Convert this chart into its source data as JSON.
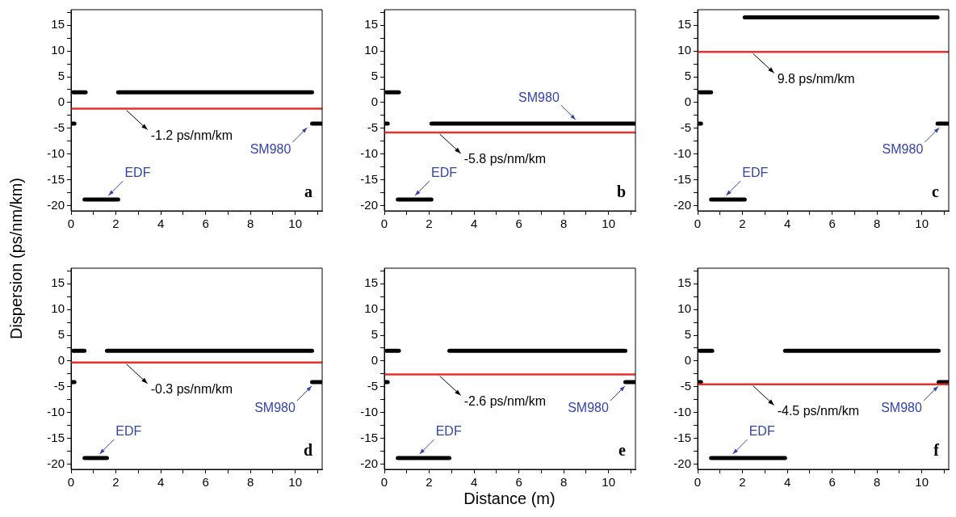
{
  "chart_data": [
    {
      "type": "line",
      "title": "a",
      "ylabel": "Dispersion (ps/nm/km)",
      "xlim": [
        0,
        11.2
      ],
      "ylim": [
        -21,
        18
      ],
      "xticks": [
        0,
        {
          "value": 1,
          "label": null
        },
        2,
        {
          "value": 3,
          "label": null
        },
        4,
        {
          "value": 5,
          "label": null
        },
        6,
        {
          "value": 7,
          "label": null
        },
        8,
        {
          "value": 9,
          "label": null
        },
        10,
        {
          "value": 11,
          "label": null
        }
      ],
      "yticks": [
        -20,
        {
          "value": -17.5,
          "label": null
        },
        -15,
        {
          "value": -12.5,
          "label": null
        },
        -10,
        {
          "value": -7.5,
          "label": null
        },
        -5,
        {
          "value": -2.5,
          "label": null
        },
        0,
        {
          "value": 2.5,
          "label": null
        },
        5,
        {
          "value": 7.5,
          "label": null
        },
        10,
        {
          "value": 12.5,
          "label": null
        },
        15,
        {
          "value": 17.5,
          "label": null
        }
      ],
      "series": [
        {
          "color": "#000000",
          "x": [
            0,
            0.15
          ],
          "values": [
            -4.1,
            -4.1
          ]
        },
        {
          "color": "#000000",
          "x": [
            0.1,
            0.65
          ],
          "values": [
            2,
            2
          ]
        },
        {
          "color": "#000000",
          "x": [
            0.6,
            2.1
          ],
          "values": [
            -18.8,
            -18.8
          ]
        },
        {
          "color": "#000000",
          "x": [
            2.1,
            10.75
          ],
          "values": [
            2,
            2
          ]
        },
        {
          "color": "#000000",
          "x": [
            10.75,
            11.2
          ],
          "values": [
            -4.1,
            -4.1
          ]
        }
      ],
      "ref_lines": [
        {
          "axis": "y",
          "value": -1.2,
          "label": "-1.2 ps/nm/km",
          "color": "#e8312a"
        }
      ],
      "annotations": [
        {
          "text": "SM980",
          "x": 10.6,
          "y": -4.1
        },
        {
          "text": "EDF",
          "x": 1.6,
          "y": -18.8
        }
      ]
    },
    {
      "type": "line",
      "title": "b",
      "xlim": [
        0,
        11.2
      ],
      "ylim": [
        -21,
        18
      ],
      "xticks": [
        0,
        {
          "value": 1,
          "label": null
        },
        2,
        {
          "value": 3,
          "label": null
        },
        4,
        {
          "value": 5,
          "label": null
        },
        6,
        {
          "value": 7,
          "label": null
        },
        8,
        {
          "value": 9,
          "label": null
        },
        10,
        {
          "value": 11,
          "label": null
        }
      ],
      "yticks": [
        -20,
        {
          "value": -17.5,
          "label": null
        },
        -15,
        {
          "value": -12.5,
          "label": null
        },
        -10,
        {
          "value": -7.5,
          "label": null
        },
        -5,
        {
          "value": -2.5,
          "label": null
        },
        0,
        {
          "value": 2.5,
          "label": null
        },
        5,
        {
          "value": 7.5,
          "label": null
        },
        10,
        {
          "value": 12.5,
          "label": null
        },
        15,
        {
          "value": 17.5,
          "label": null
        }
      ],
      "series": [
        {
          "color": "#000000",
          "x": [
            0,
            0.15
          ],
          "values": [
            -4.1,
            -4.1
          ]
        },
        {
          "color": "#000000",
          "x": [
            0.1,
            0.65
          ],
          "values": [
            2,
            2
          ]
        },
        {
          "color": "#000000",
          "x": [
            0.6,
            2.1
          ],
          "values": [
            -18.8,
            -18.8
          ]
        },
        {
          "color": "#000000",
          "x": [
            2.1,
            11.2
          ],
          "values": [
            -4.1,
            -4.1
          ]
        }
      ],
      "ref_lines": [
        {
          "axis": "y",
          "value": -5.8,
          "label": "-5.8 ps/nm/km",
          "color": "#e8312a"
        }
      ],
      "annotations": [
        {
          "text": "SM980",
          "x": 8.6,
          "y": -4.1
        },
        {
          "text": "EDF",
          "x": 1.3,
          "y": -18.8
        }
      ]
    },
    {
      "type": "line",
      "title": "c",
      "xlim": [
        0,
        11.2
      ],
      "ylim": [
        -21,
        18
      ],
      "xticks": [
        0,
        {
          "value": 1,
          "label": null
        },
        2,
        {
          "value": 3,
          "label": null
        },
        4,
        {
          "value": 5,
          "label": null
        },
        6,
        {
          "value": 7,
          "label": null
        },
        8,
        {
          "value": 9,
          "label": null
        },
        10,
        {
          "value": 11,
          "label": null
        }
      ],
      "yticks": [
        -20,
        {
          "value": -17.5,
          "label": null
        },
        -15,
        {
          "value": -12.5,
          "label": null
        },
        -10,
        {
          "value": -7.5,
          "label": null
        },
        -5,
        {
          "value": -2.5,
          "label": null
        },
        0,
        {
          "value": 2.5,
          "label": null
        },
        5,
        {
          "value": 7.5,
          "label": null
        },
        10,
        {
          "value": 12.5,
          "label": null
        },
        15,
        {
          "value": 17.5,
          "label": null
        }
      ],
      "series": [
        {
          "color": "#000000",
          "x": [
            0,
            0.15
          ],
          "values": [
            -4.1,
            -4.1
          ]
        },
        {
          "color": "#000000",
          "x": [
            0.1,
            0.6
          ],
          "values": [
            2,
            2
          ]
        },
        {
          "color": "#000000",
          "x": [
            0.6,
            2.1
          ],
          "values": [
            -18.8,
            -18.8
          ]
        },
        {
          "color": "#000000",
          "x": [
            2.1,
            10.7
          ],
          "values": [
            16.5,
            16.5
          ]
        },
        {
          "color": "#000000",
          "x": [
            10.7,
            11.2
          ],
          "values": [
            -4.1,
            -4.1
          ]
        }
      ],
      "ref_lines": [
        {
          "axis": "y",
          "value": 9.8,
          "label": "9.8 ps/nm/km",
          "color": "#e8312a"
        }
      ],
      "annotations": [
        {
          "text": "SM980",
          "x": 10.85,
          "y": -4.1
        },
        {
          "text": "EDF",
          "x": 1.2,
          "y": -18.8
        }
      ]
    },
    {
      "type": "line",
      "title": "d",
      "xlim": [
        0,
        11.2
      ],
      "ylim": [
        -21,
        18
      ],
      "xticks": [
        0,
        {
          "value": 1,
          "label": null
        },
        2,
        {
          "value": 3,
          "label": null
        },
        4,
        {
          "value": 5,
          "label": null
        },
        6,
        {
          "value": 7,
          "label": null
        },
        8,
        {
          "value": 9,
          "label": null
        },
        10,
        {
          "value": 11,
          "label": null
        }
      ],
      "yticks": [
        -20,
        {
          "value": -17.5,
          "label": null
        },
        -15,
        {
          "value": -12.5,
          "label": null
        },
        -10,
        {
          "value": -7.5,
          "label": null
        },
        -5,
        {
          "value": -2.5,
          "label": null
        },
        0,
        {
          "value": 2.5,
          "label": null
        },
        5,
        {
          "value": 7.5,
          "label": null
        },
        10,
        {
          "value": 12.5,
          "label": null
        },
        15,
        {
          "value": 17.5,
          "label": null
        }
      ],
      "series": [
        {
          "color": "#000000",
          "x": [
            0,
            0.15
          ],
          "values": [
            -4.1,
            -4.1
          ]
        },
        {
          "color": "#000000",
          "x": [
            0.1,
            0.6
          ],
          "values": [
            2,
            2
          ]
        },
        {
          "color": "#000000",
          "x": [
            0.6,
            1.6
          ],
          "values": [
            -18.8,
            -18.8
          ]
        },
        {
          "color": "#000000",
          "x": [
            1.6,
            10.75
          ],
          "values": [
            2,
            2
          ]
        },
        {
          "color": "#000000",
          "x": [
            10.75,
            11.2
          ],
          "values": [
            -4.1,
            -4.1
          ]
        }
      ],
      "ref_lines": [
        {
          "axis": "y",
          "value": -0.3,
          "label": "-0.3 ps/nm/km",
          "color": "#e8312a"
        }
      ],
      "annotations": [
        {
          "text": "SM980",
          "x": 10.8,
          "y": -4.1
        },
        {
          "text": "EDF",
          "x": 1.2,
          "y": -18.8
        }
      ]
    },
    {
      "type": "line",
      "title": "e",
      "xlabel": "Distance (m)",
      "xlim": [
        0,
        11.2
      ],
      "ylim": [
        -21,
        18
      ],
      "xticks": [
        0,
        {
          "value": 1,
          "label": null
        },
        2,
        {
          "value": 3,
          "label": null
        },
        4,
        {
          "value": 5,
          "label": null
        },
        6,
        {
          "value": 7,
          "label": null
        },
        8,
        {
          "value": 9,
          "label": null
        },
        10,
        {
          "value": 11,
          "label": null
        }
      ],
      "yticks": [
        -20,
        {
          "value": -17.5,
          "label": null
        },
        -15,
        {
          "value": -12.5,
          "label": null
        },
        -10,
        {
          "value": -7.5,
          "label": null
        },
        -5,
        {
          "value": -2.5,
          "label": null
        },
        0,
        {
          "value": 2.5,
          "label": null
        },
        5,
        {
          "value": 7.5,
          "label": null
        },
        10,
        {
          "value": 12.5,
          "label": null
        },
        15,
        {
          "value": 17.5,
          "label": null
        }
      ],
      "series": [
        {
          "color": "#000000",
          "x": [
            0,
            0.15
          ],
          "values": [
            -4.1,
            -4.1
          ]
        },
        {
          "color": "#000000",
          "x": [
            0.1,
            0.65
          ],
          "values": [
            2,
            2
          ]
        },
        {
          "color": "#000000",
          "x": [
            0.6,
            2.9
          ],
          "values": [
            -18.8,
            -18.8
          ]
        },
        {
          "color": "#000000",
          "x": [
            2.9,
            10.75
          ],
          "values": [
            2,
            2
          ]
        },
        {
          "color": "#000000",
          "x": [
            10.75,
            11.2
          ],
          "values": [
            -4.1,
            -4.1
          ]
        }
      ],
      "ref_lines": [
        {
          "axis": "y",
          "value": -2.6,
          "label": "-2.6 ps/nm/km",
          "color": "#e8312a"
        }
      ],
      "annotations": [
        {
          "text": "SM980",
          "x": 10.8,
          "y": -4.1
        },
        {
          "text": "EDF",
          "x": 1.5,
          "y": -18.8
        }
      ]
    },
    {
      "type": "line",
      "title": "f",
      "xlim": [
        0,
        11.2
      ],
      "ylim": [
        -21,
        18
      ],
      "xticks": [
        0,
        {
          "value": 1,
          "label": null
        },
        2,
        {
          "value": 3,
          "label": null
        },
        4,
        {
          "value": 5,
          "label": null
        },
        6,
        {
          "value": 7,
          "label": null
        },
        8,
        {
          "value": 9,
          "label": null
        },
        10,
        {
          "value": 11,
          "label": null
        }
      ],
      "yticks": [
        -20,
        {
          "value": -17.5,
          "label": null
        },
        -15,
        {
          "value": -12.5,
          "label": null
        },
        -10,
        {
          "value": -7.5,
          "label": null
        },
        -5,
        {
          "value": -2.5,
          "label": null
        },
        0,
        {
          "value": 2.5,
          "label": null
        },
        5,
        {
          "value": 7.5,
          "label": null
        },
        10,
        {
          "value": 12.5,
          "label": null
        },
        15,
        {
          "value": 17.5,
          "label": null
        }
      ],
      "series": [
        {
          "color": "#000000",
          "x": [
            0,
            0.15
          ],
          "values": [
            -4.1,
            -4.1
          ]
        },
        {
          "color": "#000000",
          "x": [
            0.1,
            0.65
          ],
          "values": [
            2,
            2
          ]
        },
        {
          "color": "#000000",
          "x": [
            0.6,
            3.9
          ],
          "values": [
            -18.8,
            -18.8
          ]
        },
        {
          "color": "#000000",
          "x": [
            3.9,
            10.75
          ],
          "values": [
            2,
            2
          ]
        },
        {
          "color": "#000000",
          "x": [
            10.75,
            11.2
          ],
          "values": [
            -4.1,
            -4.1
          ]
        }
      ],
      "ref_lines": [
        {
          "axis": "y",
          "value": -4.5,
          "label": "-4.5 ps/nm/km",
          "color": "#e8312a"
        }
      ],
      "annotations": [
        {
          "text": "SM980",
          "x": 10.8,
          "y": -4.1
        },
        {
          "text": "EDF",
          "x": 1.5,
          "y": -18.8
        }
      ]
    }
  ]
}
